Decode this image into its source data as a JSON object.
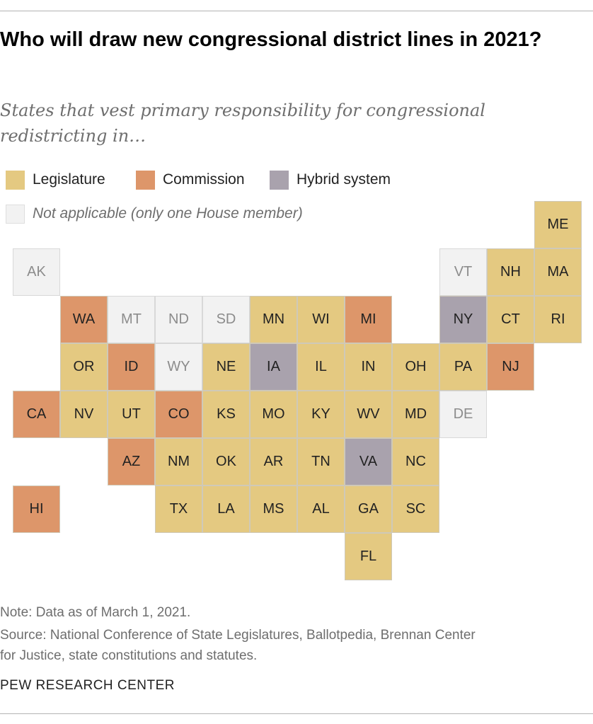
{
  "title": "Who will draw new congressional district lines in 2021?",
  "subtitle": "States that vest primary responsibility for congressional redistricting in…",
  "legend": {
    "legislature": {
      "label": "Legislature",
      "color": "#e4c981"
    },
    "commission": {
      "label": "Commission",
      "color": "#dd966a"
    },
    "hybrid": {
      "label": "Hybrid system",
      "color": "#a9a2ad"
    },
    "na": {
      "label": "Not applicable (only one House member)",
      "color": "#f2f2f2"
    }
  },
  "states": [
    {
      "abbr": "ME",
      "category": "legislature",
      "col": 11,
      "row": 0
    },
    {
      "abbr": "AK",
      "category": "na",
      "col": 0,
      "row": 1
    },
    {
      "abbr": "VT",
      "category": "na",
      "col": 9,
      "row": 1
    },
    {
      "abbr": "NH",
      "category": "legislature",
      "col": 10,
      "row": 1
    },
    {
      "abbr": "MA",
      "category": "legislature",
      "col": 11,
      "row": 1
    },
    {
      "abbr": "WA",
      "category": "commission",
      "col": 1,
      "row": 2
    },
    {
      "abbr": "MT",
      "category": "na",
      "col": 2,
      "row": 2
    },
    {
      "abbr": "ND",
      "category": "na",
      "col": 3,
      "row": 2
    },
    {
      "abbr": "SD",
      "category": "na",
      "col": 4,
      "row": 2
    },
    {
      "abbr": "MN",
      "category": "legislature",
      "col": 5,
      "row": 2
    },
    {
      "abbr": "WI",
      "category": "legislature",
      "col": 6,
      "row": 2
    },
    {
      "abbr": "MI",
      "category": "commission",
      "col": 7,
      "row": 2
    },
    {
      "abbr": "NY",
      "category": "hybrid",
      "col": 9,
      "row": 2
    },
    {
      "abbr": "CT",
      "category": "legislature",
      "col": 10,
      "row": 2
    },
    {
      "abbr": "RI",
      "category": "legislature",
      "col": 11,
      "row": 2
    },
    {
      "abbr": "OR",
      "category": "legislature",
      "col": 1,
      "row": 3
    },
    {
      "abbr": "ID",
      "category": "commission",
      "col": 2,
      "row": 3
    },
    {
      "abbr": "WY",
      "category": "na",
      "col": 3,
      "row": 3
    },
    {
      "abbr": "NE",
      "category": "legislature",
      "col": 4,
      "row": 3
    },
    {
      "abbr": "IA",
      "category": "hybrid",
      "col": 5,
      "row": 3
    },
    {
      "abbr": "IL",
      "category": "legislature",
      "col": 6,
      "row": 3
    },
    {
      "abbr": "IN",
      "category": "legislature",
      "col": 7,
      "row": 3
    },
    {
      "abbr": "OH",
      "category": "legislature",
      "col": 8,
      "row": 3
    },
    {
      "abbr": "PA",
      "category": "legislature",
      "col": 9,
      "row": 3
    },
    {
      "abbr": "NJ",
      "category": "commission",
      "col": 10,
      "row": 3
    },
    {
      "abbr": "CA",
      "category": "commission",
      "col": 0,
      "row": 4
    },
    {
      "abbr": "NV",
      "category": "legislature",
      "col": 1,
      "row": 4
    },
    {
      "abbr": "UT",
      "category": "legislature",
      "col": 2,
      "row": 4
    },
    {
      "abbr": "CO",
      "category": "commission",
      "col": 3,
      "row": 4
    },
    {
      "abbr": "KS",
      "category": "legislature",
      "col": 4,
      "row": 4
    },
    {
      "abbr": "MO",
      "category": "legislature",
      "col": 5,
      "row": 4
    },
    {
      "abbr": "KY",
      "category": "legislature",
      "col": 6,
      "row": 4
    },
    {
      "abbr": "WV",
      "category": "legislature",
      "col": 7,
      "row": 4
    },
    {
      "abbr": "MD",
      "category": "legislature",
      "col": 8,
      "row": 4
    },
    {
      "abbr": "DE",
      "category": "na",
      "col": 9,
      "row": 4
    },
    {
      "abbr": "AZ",
      "category": "commission",
      "col": 2,
      "row": 5
    },
    {
      "abbr": "NM",
      "category": "legislature",
      "col": 3,
      "row": 5
    },
    {
      "abbr": "OK",
      "category": "legislature",
      "col": 4,
      "row": 5
    },
    {
      "abbr": "AR",
      "category": "legislature",
      "col": 5,
      "row": 5
    },
    {
      "abbr": "TN",
      "category": "legislature",
      "col": 6,
      "row": 5
    },
    {
      "abbr": "VA",
      "category": "hybrid",
      "col": 7,
      "row": 5
    },
    {
      "abbr": "NC",
      "category": "legislature",
      "col": 8,
      "row": 5
    },
    {
      "abbr": "HI",
      "category": "commission",
      "col": 0,
      "row": 6
    },
    {
      "abbr": "TX",
      "category": "legislature",
      "col": 3,
      "row": 6
    },
    {
      "abbr": "LA",
      "category": "legislature",
      "col": 4,
      "row": 6
    },
    {
      "abbr": "MS",
      "category": "legislature",
      "col": 5,
      "row": 6
    },
    {
      "abbr": "AL",
      "category": "legislature",
      "col": 6,
      "row": 6
    },
    {
      "abbr": "GA",
      "category": "legislature",
      "col": 7,
      "row": 6
    },
    {
      "abbr": "SC",
      "category": "legislature",
      "col": 8,
      "row": 6
    },
    {
      "abbr": "FL",
      "category": "legislature",
      "col": 7,
      "row": 7
    }
  ],
  "note": "Note: Data as of March 1, 2021.",
  "source_line1": "Source: National Conference of State Legislatures, Ballotpedia, Brennan Center",
  "source_line2": "for Justice, state constitutions and statutes.",
  "brand": "PEW RESEARCH CENTER"
}
